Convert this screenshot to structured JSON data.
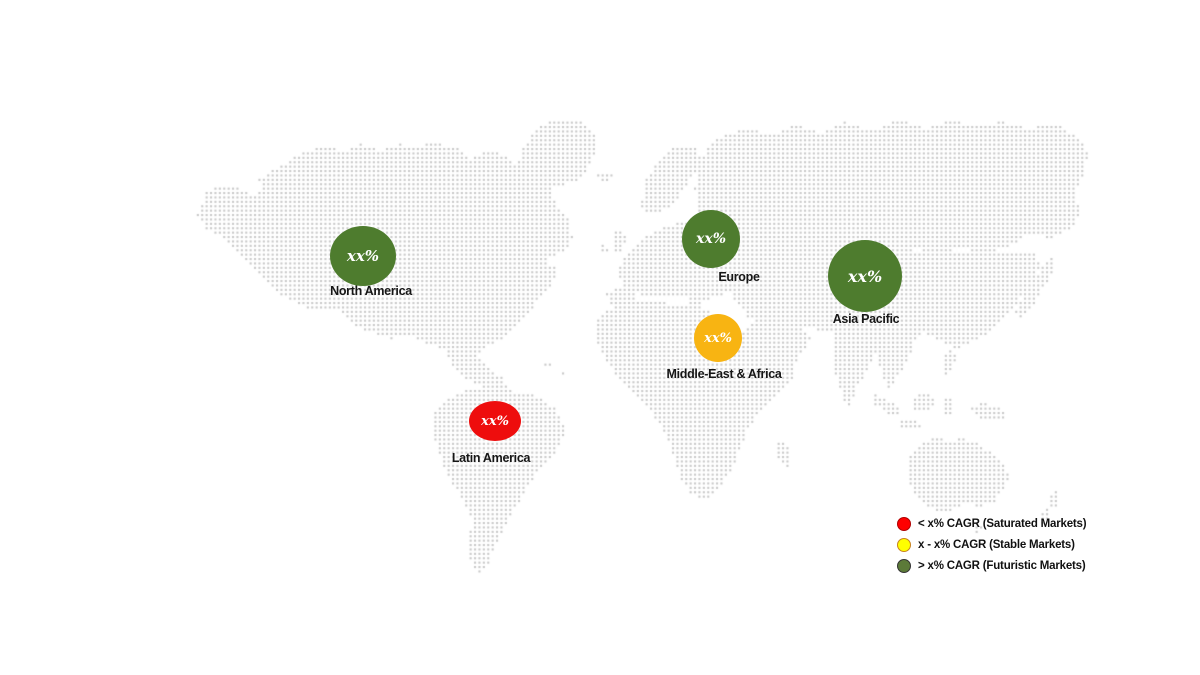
{
  "page": {
    "background": "#ffffff",
    "map_dot_color": "#c9c9c9",
    "label_color": "#161616"
  },
  "chart_data": {
    "type": "bubble-map",
    "title": "Regional CAGR market map (dotted world map infographic)",
    "map_style": "dotted-world-map",
    "regions": [
      {
        "id": "north-america",
        "label": "North America",
        "value": "xx%",
        "market_type": "futuristic",
        "color": "#4e7c2e"
      },
      {
        "id": "latin-america",
        "label": "Latin America",
        "value": "xx%",
        "market_type": "saturated",
        "color": "#ee0d0d"
      },
      {
        "id": "europe",
        "label": "Europe",
        "value": "xx%",
        "market_type": "futuristic",
        "color": "#4e7c2e"
      },
      {
        "id": "middle-east-africa",
        "label": "Middle-East & Africa",
        "value": "xx%",
        "market_type": "stable",
        "color": "#f8b412"
      },
      {
        "id": "asia-pacific",
        "label": "Asia Pacific",
        "value": "xx%",
        "market_type": "futuristic",
        "color": "#4e7c2e"
      }
    ],
    "legend": [
      {
        "label": "< x% CAGR (Saturated Markets)",
        "color": "#fe0000",
        "border": "#b00000"
      },
      {
        "label": "x - x% CAGR (Stable Markets)",
        "color": "#ffff00",
        "border": "#c8821e"
      },
      {
        "label": "> x% CAGR (Futuristic Markets)",
        "color": "#5c7a38",
        "border": "#333333"
      }
    ],
    "legend_position": "bottom-right",
    "grid": "off"
  }
}
